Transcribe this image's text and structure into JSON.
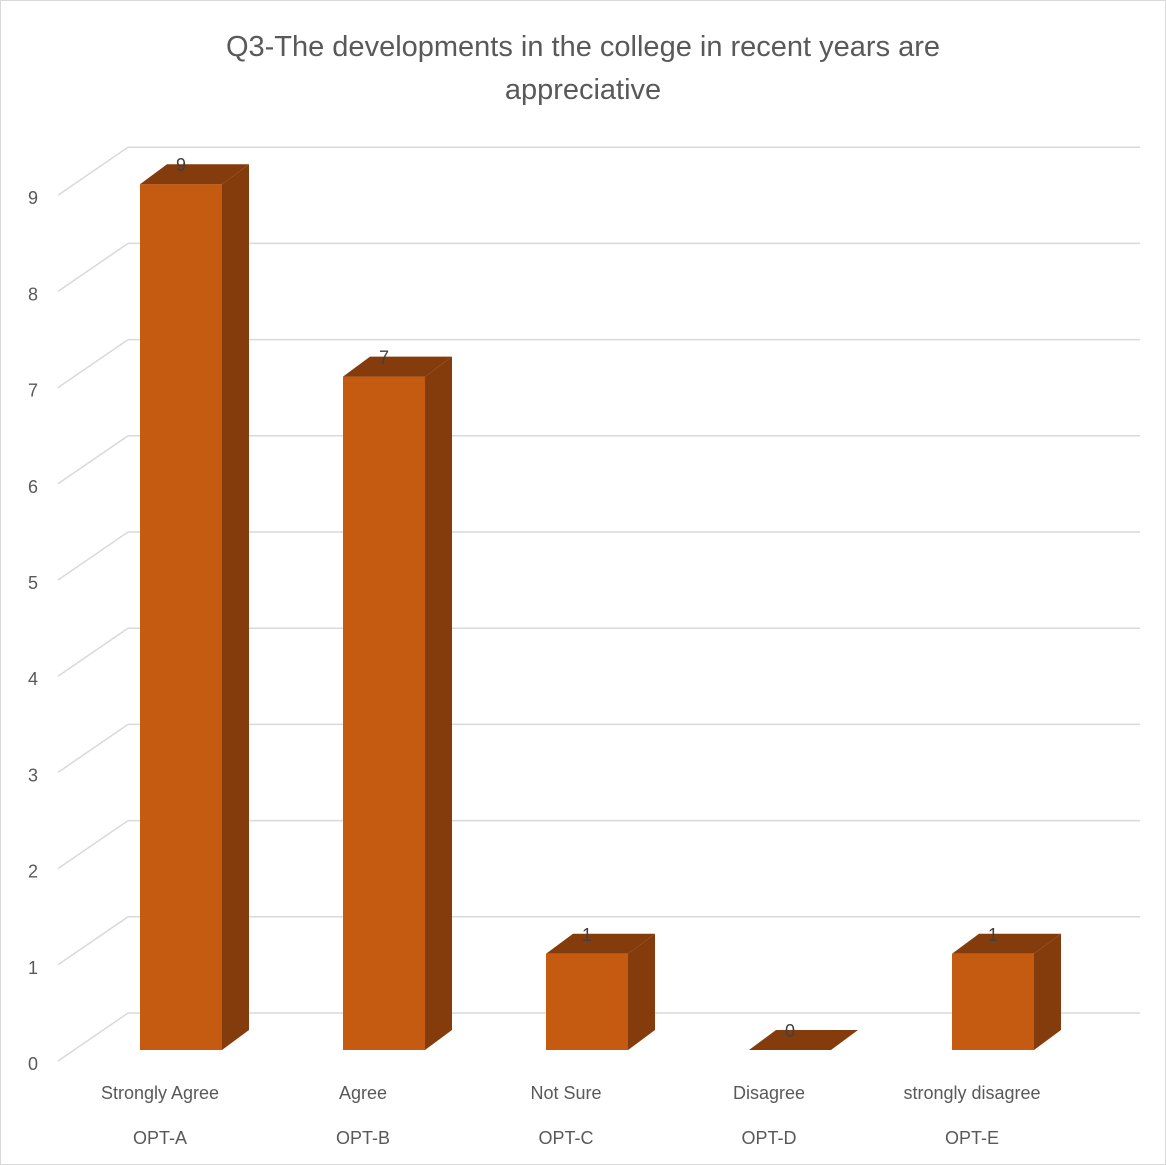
{
  "chart_data": {
    "type": "bar",
    "style": "3d-column",
    "title_lines": [
      "Q3-The developments in the college in recent years are",
      "appreciative"
    ],
    "categories": [
      "Strongly Agree",
      "Agree",
      "Not Sure",
      "Disagree",
      "strongly disagree"
    ],
    "sub_categories": [
      "OPT-A",
      "OPT-B",
      "OPT-C",
      "OPT-D",
      "OPT-E"
    ],
    "values": [
      9,
      7,
      1,
      0,
      1
    ],
    "ylim": [
      0,
      9
    ],
    "yticks": [
      0,
      1,
      2,
      3,
      4,
      5,
      6,
      7,
      8,
      9
    ],
    "grid": true,
    "legend": "none",
    "data_labels": true,
    "colors": {
      "bar_front": "#c55a11",
      "bar_side": "#843c0c",
      "bar_top": "#a34a0e",
      "gridline": "#d9d9d9",
      "axis_text": "#595959",
      "label_text": "#404040"
    }
  }
}
